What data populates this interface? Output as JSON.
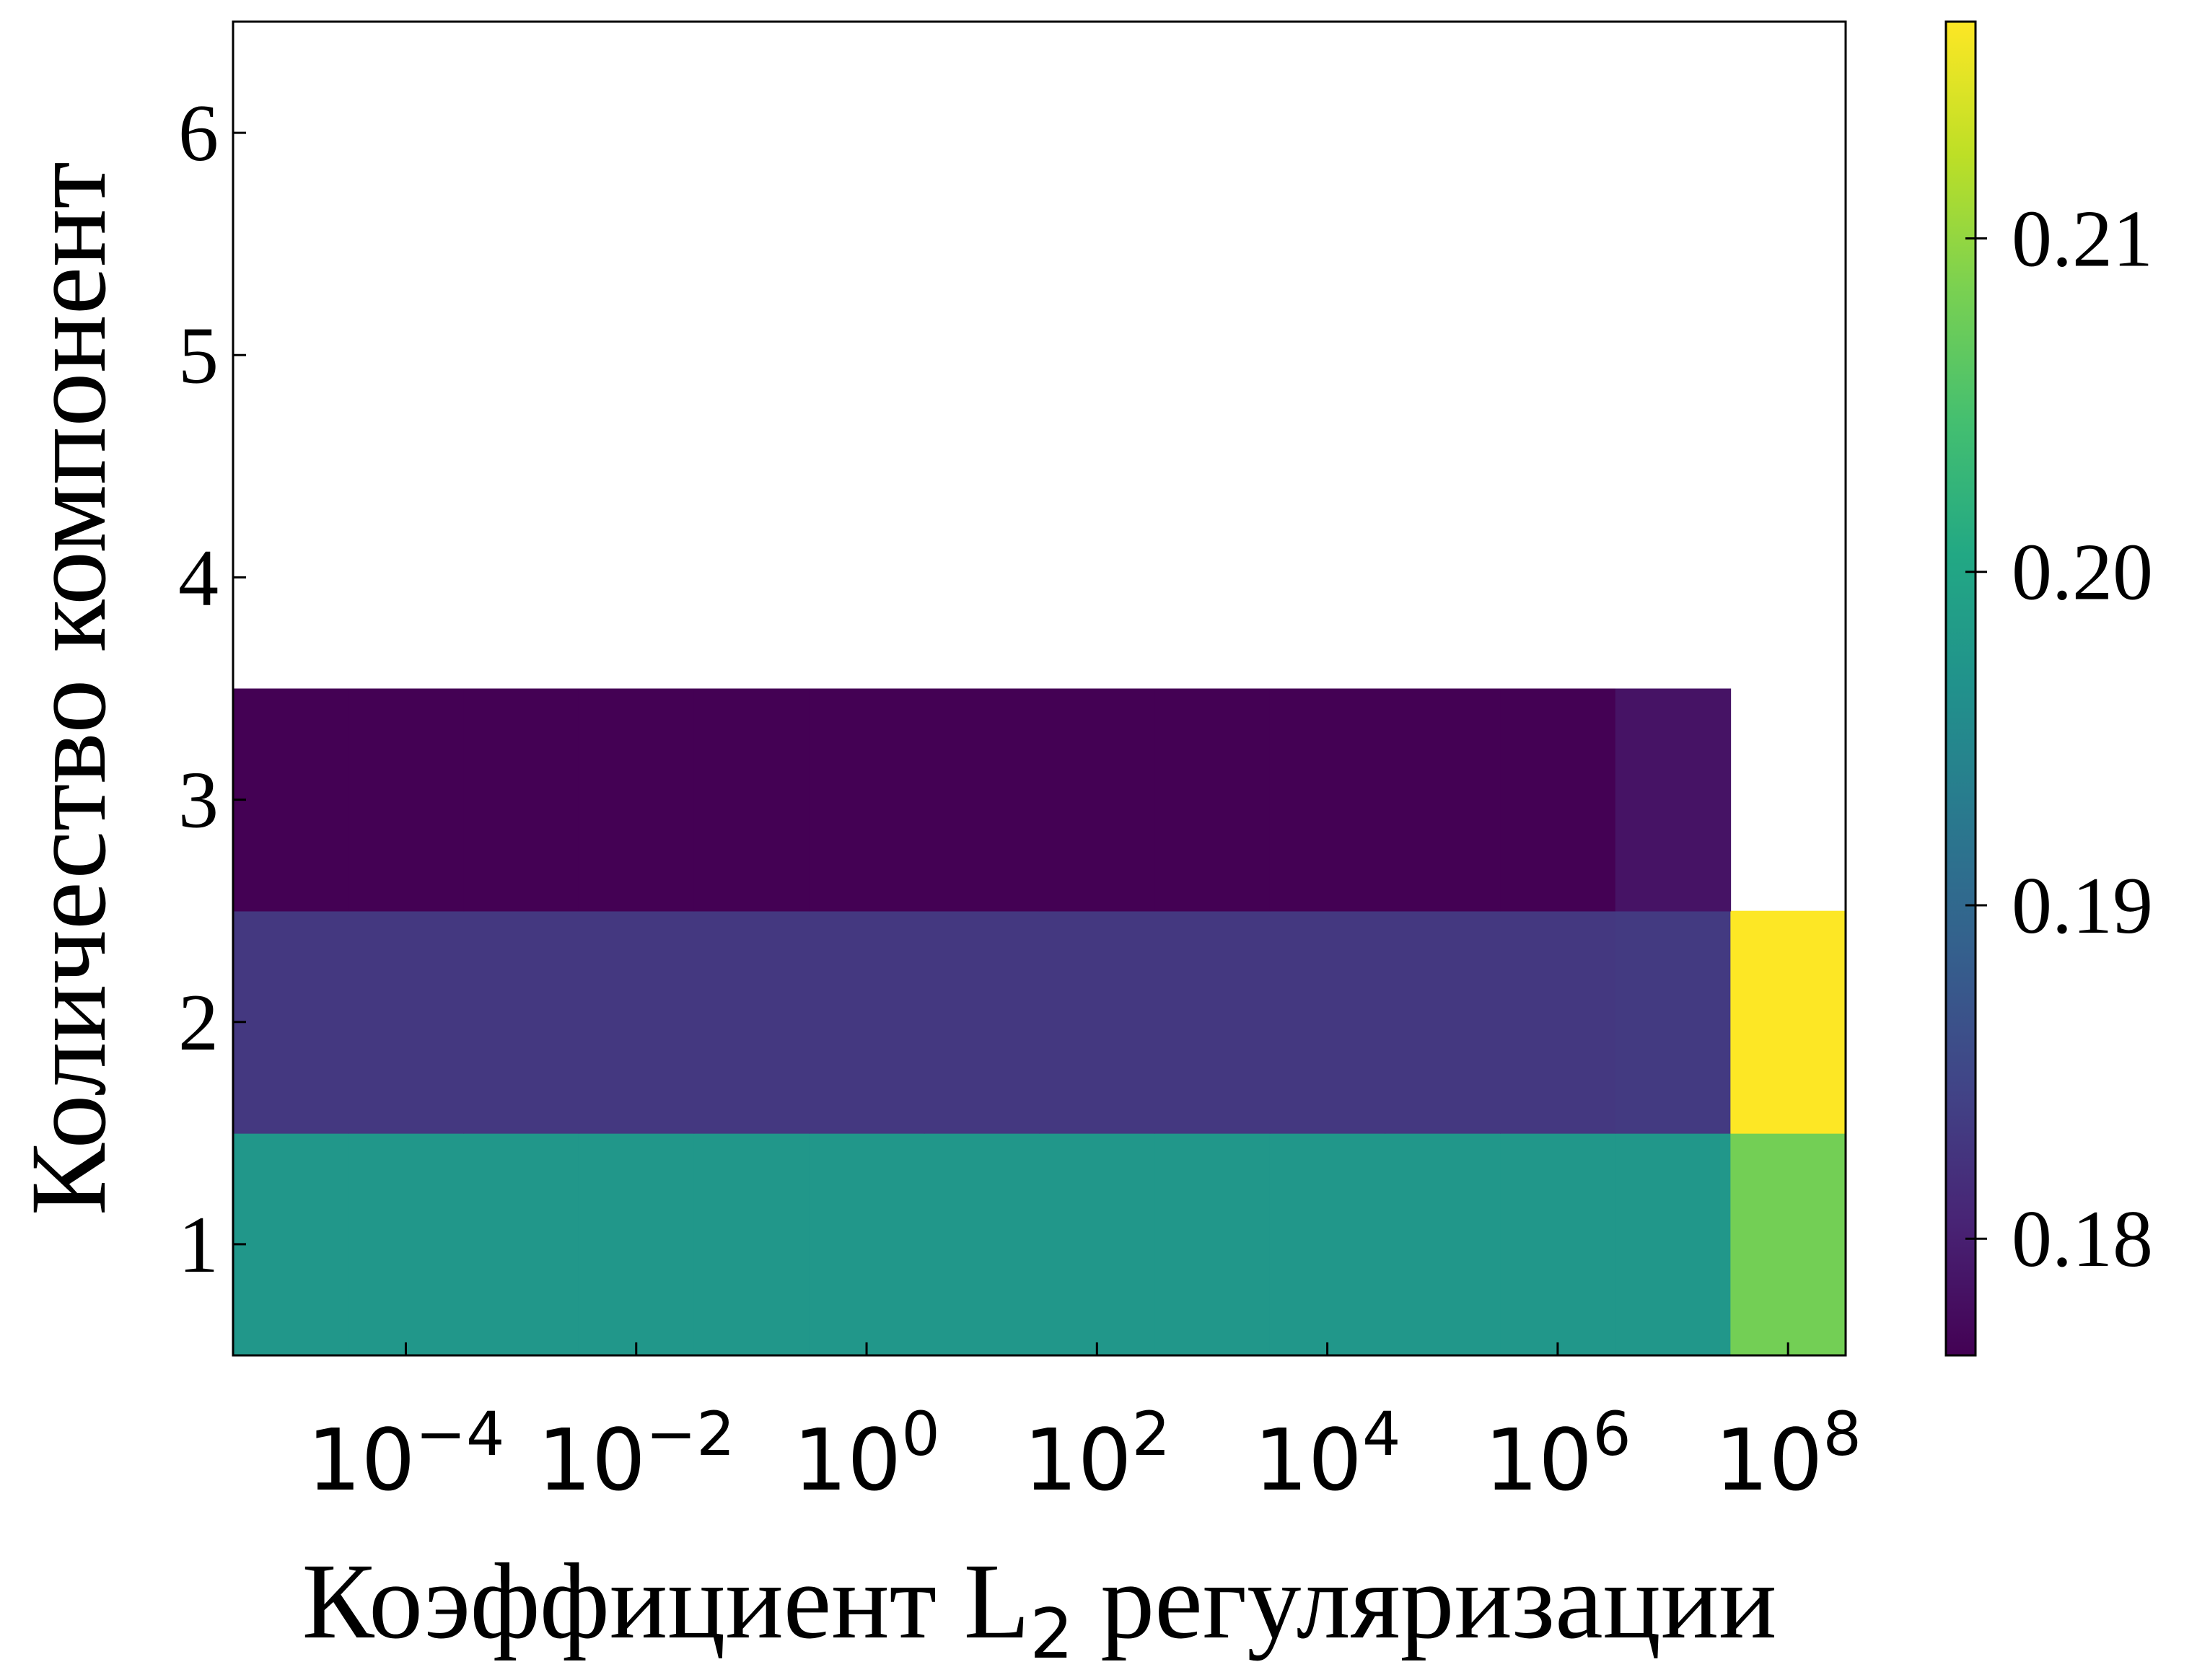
{
  "chart_data": {
    "type": "heatmap",
    "xlabel_prefix": "Коэффициент L",
    "xlabel_sub": "2",
    "xlabel_suffix": " регуляризации",
    "ylabel": "Количество компонент",
    "x_scale": "log",
    "x_values": [
      1e-05,
      0.0001,
      0.001,
      0.01,
      0.1,
      1,
      10,
      100,
      1000,
      10000,
      100000,
      1000000,
      10000000,
      100000000
    ],
    "x_ticks": [
      {
        "value": 0.0001,
        "base": "10",
        "exp": "−4"
      },
      {
        "value": 0.01,
        "base": "10",
        "exp": "−2"
      },
      {
        "value": 1,
        "base": "10",
        "exp": "0"
      },
      {
        "value": 100,
        "base": "10",
        "exp": "2"
      },
      {
        "value": 10000,
        "base": "10",
        "exp": "4"
      },
      {
        "value": 1000000,
        "base": "10",
        "exp": "6"
      },
      {
        "value": 100000000,
        "base": "10",
        "exp": "8"
      }
    ],
    "y_values": [
      1,
      2,
      3,
      4,
      5,
      6
    ],
    "y_ticks": [
      "1",
      "2",
      "3",
      "4",
      "5",
      "6"
    ],
    "ylim": [
      0.5,
      6.5
    ],
    "colormap": "viridis",
    "vmin": 0.1765,
    "vmax": 0.2165,
    "colorbar_ticks": [
      "0.18",
      "0.19",
      "0.20",
      "0.21"
    ],
    "colorbar_tick_values": [
      0.18,
      0.19,
      0.2,
      0.21
    ],
    "grid": false,
    "rows": [
      {
        "y": 1,
        "values": [
          0.1975,
          0.1975,
          0.1975,
          0.1975,
          0.1975,
          0.1975,
          0.1975,
          0.1975,
          0.1975,
          0.1975,
          0.1975,
          0.1975,
          0.1975,
          0.208
        ]
      },
      {
        "y": 2,
        "values": [
          0.183,
          0.183,
          0.183,
          0.183,
          0.183,
          0.183,
          0.183,
          0.183,
          0.183,
          0.183,
          0.183,
          0.183,
          0.1832,
          0.2165
        ]
      },
      {
        "y": 3,
        "values": [
          0.1765,
          0.1765,
          0.1765,
          0.1765,
          0.1765,
          0.1765,
          0.1765,
          0.1765,
          0.1765,
          0.1765,
          0.1765,
          0.1765,
          0.1785,
          null
        ]
      },
      {
        "y": 4,
        "values": [
          null,
          null,
          null,
          null,
          null,
          null,
          null,
          null,
          null,
          null,
          null,
          null,
          null,
          null
        ]
      },
      {
        "y": 5,
        "values": [
          null,
          null,
          null,
          null,
          null,
          null,
          null,
          null,
          null,
          null,
          null,
          null,
          null,
          null
        ]
      },
      {
        "y": 6,
        "values": [
          null,
          null,
          null,
          null,
          null,
          null,
          null,
          null,
          null,
          null,
          null,
          null,
          null,
          null
        ]
      }
    ]
  }
}
